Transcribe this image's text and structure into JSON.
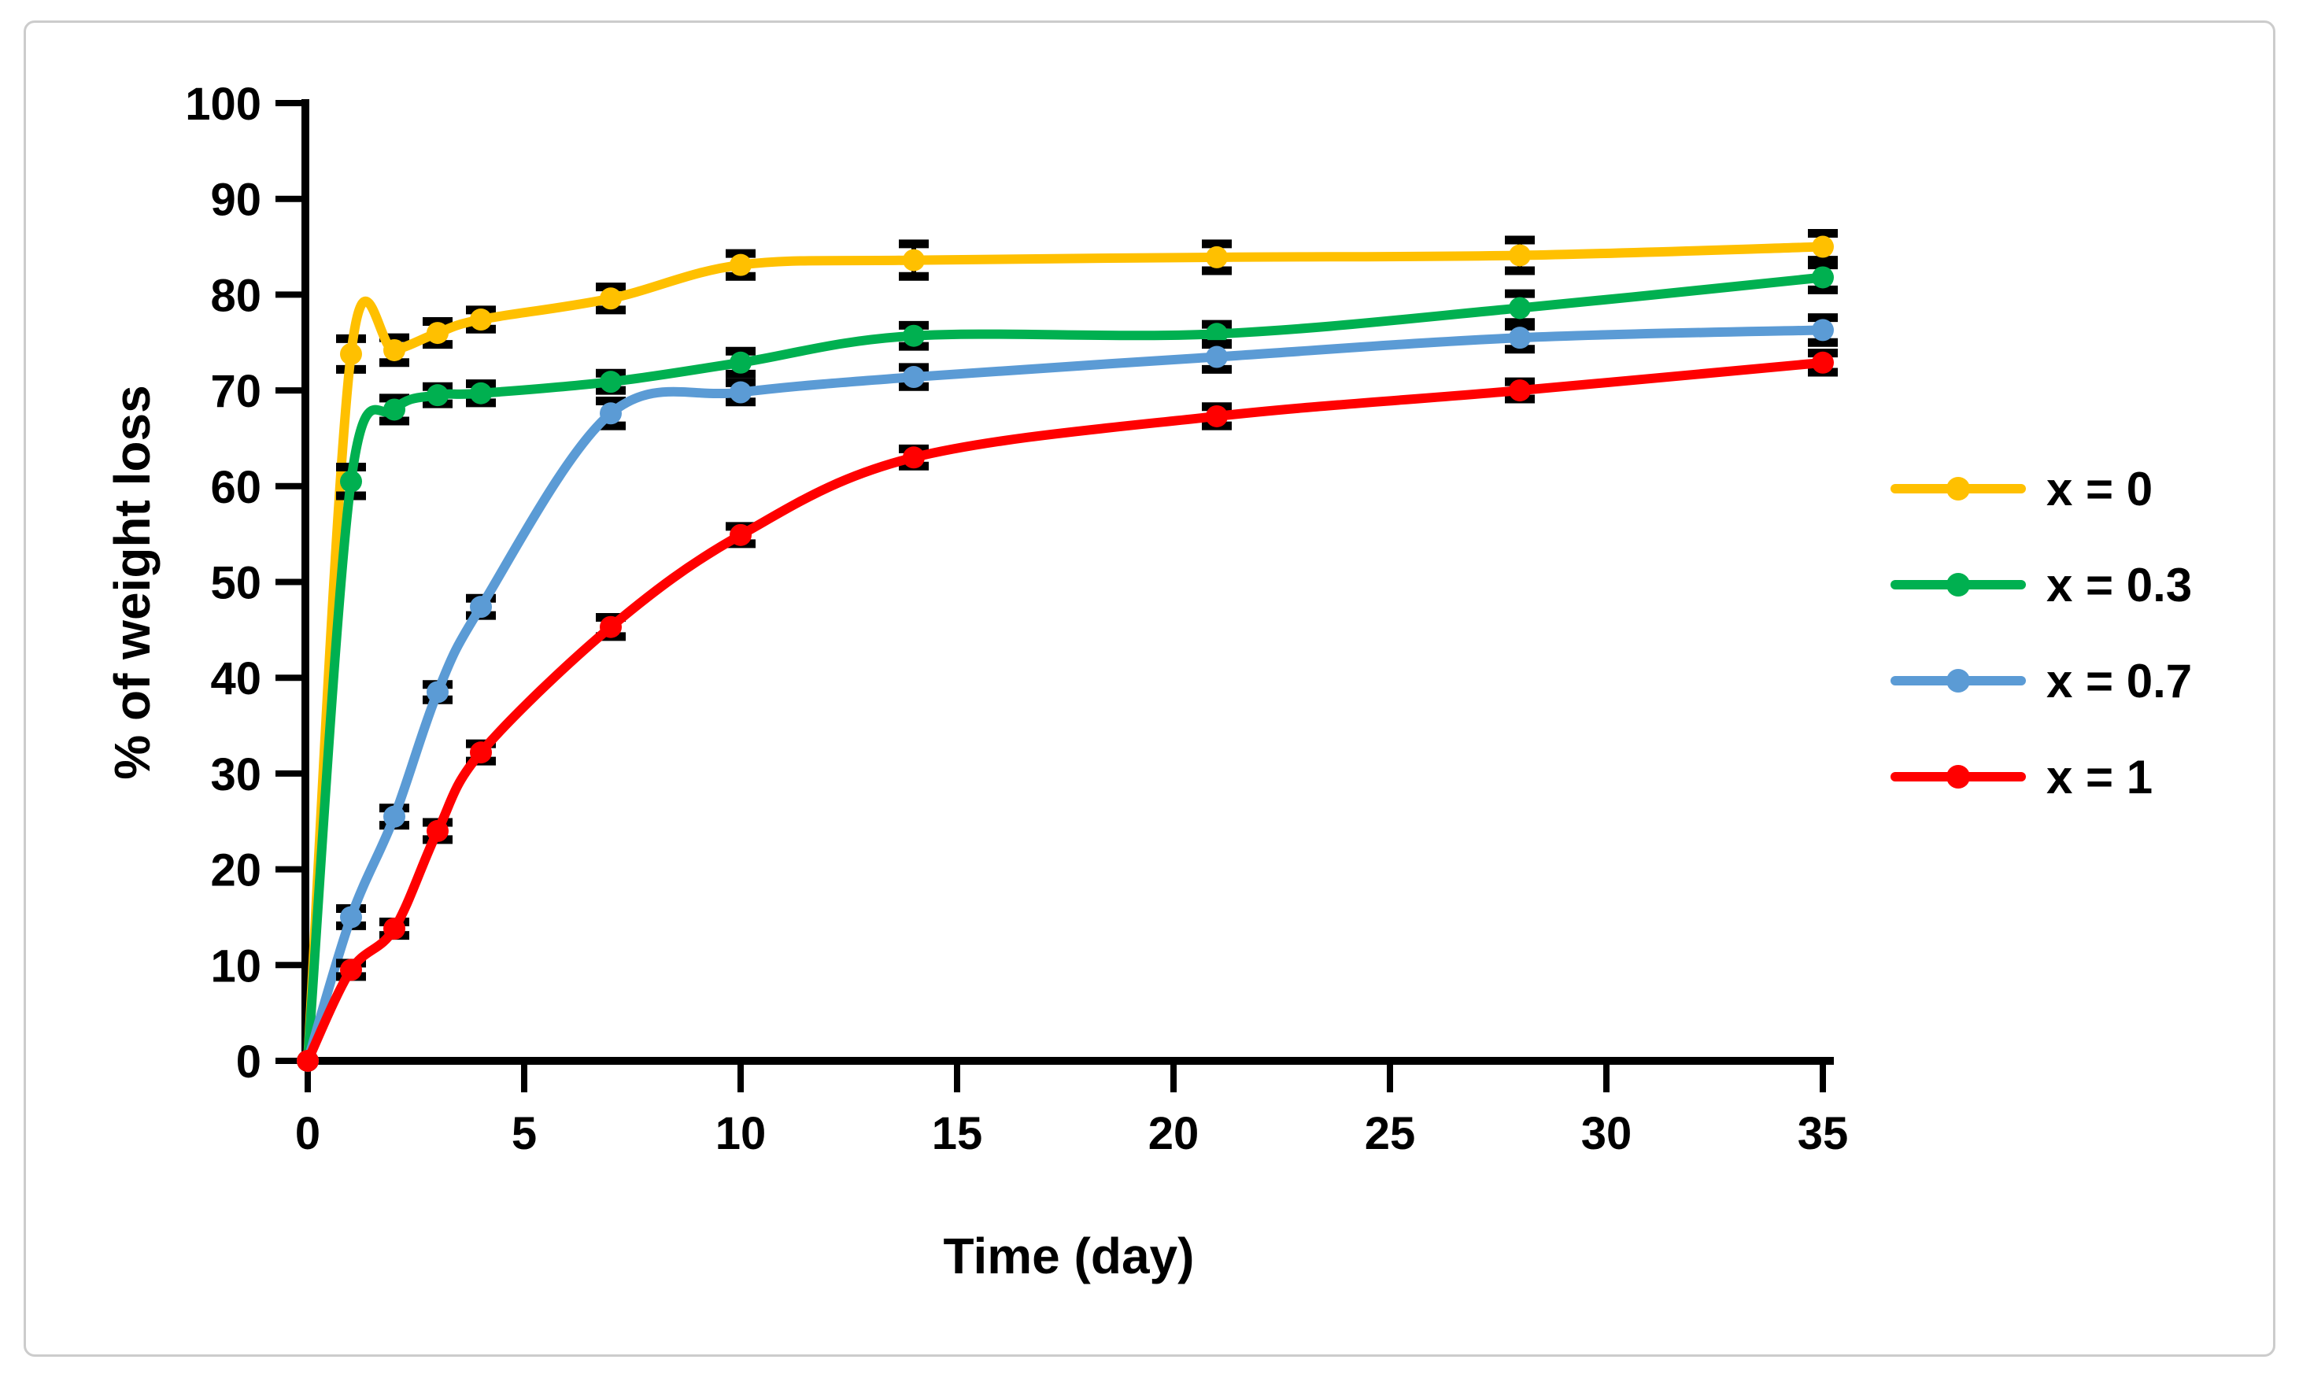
{
  "figure": {
    "background": "#ffffff",
    "frame_color": "#cccccc",
    "axis_color": "#000000",
    "error_bar_color": "#000000"
  },
  "chart_data": {
    "type": "line",
    "title": "",
    "xlabel": "Time (day)",
    "ylabel": "% of weight loss",
    "x": [
      0,
      1,
      2,
      3,
      4,
      7,
      10,
      14,
      21,
      28,
      35
    ],
    "xlim": [
      0,
      35
    ],
    "ylim": [
      0,
      100
    ],
    "x_ticks": [
      0,
      5,
      10,
      15,
      20,
      25,
      30,
      35
    ],
    "y_ticks": [
      0,
      10,
      20,
      30,
      40,
      50,
      60,
      70,
      80,
      90,
      100
    ],
    "grid": false,
    "marker": "circle",
    "smoothed_lines": true,
    "error_bars": true,
    "legend_position": "right",
    "series": [
      {
        "name": "x = 0",
        "color": "#FFC000",
        "values": [
          0,
          73.8,
          74.2,
          76.0,
          77.4,
          79.6,
          83.1,
          83.6,
          83.9,
          84.1,
          85.0
        ],
        "errors": [
          0,
          1.6,
          1.3,
          1.2,
          1.0,
          1.2,
          1.2,
          1.7,
          1.4,
          1.6,
          1.4
        ]
      },
      {
        "name": "x = 0.3",
        "color": "#00B050",
        "values": [
          0,
          60.5,
          68.0,
          69.5,
          69.7,
          70.9,
          72.9,
          75.7,
          75.9,
          78.6,
          81.8
        ],
        "errors": [
          0,
          1.5,
          1.2,
          0.9,
          1.0,
          0.9,
          1.2,
          1.1,
          1.0,
          1.5,
          1.3
        ]
      },
      {
        "name": "x = 0.7",
        "color": "#5B9BD5",
        "values": [
          0,
          15.0,
          25.5,
          38.5,
          47.4,
          67.6,
          69.8,
          71.4,
          73.5,
          75.5,
          76.3
        ],
        "errors": [
          0,
          0.9,
          0.9,
          0.8,
          0.9,
          1.3,
          1.0,
          1.0,
          1.3,
          1.2,
          1.3
        ]
      },
      {
        "name": "x = 1",
        "color": "#FF0000",
        "values": [
          0,
          9.5,
          13.8,
          24.0,
          32.2,
          45.3,
          54.9,
          63.0,
          67.3,
          70.0,
          72.9
        ],
        "errors": [
          0,
          0.7,
          0.7,
          0.9,
          0.9,
          1.0,
          0.9,
          0.9,
          1.0,
          0.9,
          1.0
        ]
      }
    ]
  }
}
